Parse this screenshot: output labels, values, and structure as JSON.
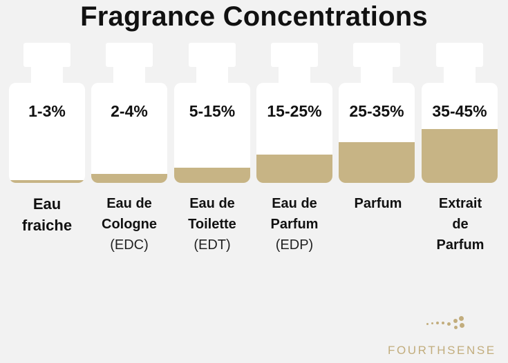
{
  "title": "Fragrance Concentrations",
  "fill_color": "#c7b485",
  "bottles": [
    {
      "percent": "1-3%",
      "fill_level": 0.03,
      "name": "Eau fraiche",
      "abbr": ""
    },
    {
      "percent": "2-4%",
      "fill_level": 0.09,
      "name": "Eau de Cologne",
      "abbr": "(EDC)"
    },
    {
      "percent": "5-15%",
      "fill_level": 0.15,
      "name": "Eau de Toilette",
      "abbr": "(EDT)"
    },
    {
      "percent": "15-25%",
      "fill_level": 0.28,
      "name": "Eau de Parfum",
      "abbr": "(EDP)"
    },
    {
      "percent": "25-35%",
      "fill_level": 0.41,
      "name": "Parfum",
      "abbr": ""
    },
    {
      "percent": "35-45%",
      "fill_level": 0.54,
      "name": "Extrait de Parfum",
      "abbr": ""
    }
  ],
  "logo": {
    "text": "FOURTHSENSE",
    "color": "#c2ad7d"
  }
}
